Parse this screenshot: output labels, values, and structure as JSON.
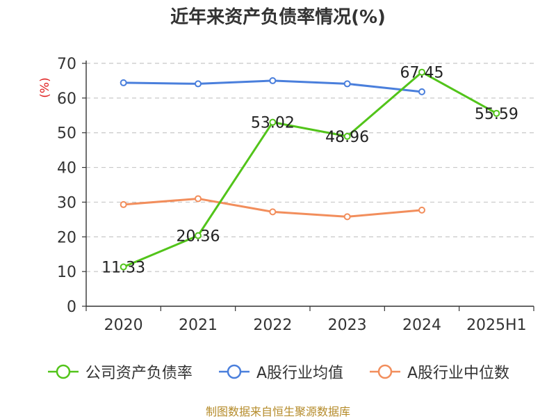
{
  "chart_data": {
    "type": "line",
    "title": "近年来资产负债率情况(%)",
    "ylabel": "(%)",
    "xlabel": "",
    "ylim": [
      0,
      70
    ],
    "yticks": [
      0,
      10,
      20,
      30,
      40,
      50,
      60,
      70
    ],
    "categories": [
      "2020",
      "2021",
      "2022",
      "2023",
      "2024",
      "2025H1"
    ],
    "grid": true,
    "legend_position": "bottom",
    "series": [
      {
        "name": "公司资产负债率",
        "color": "#52c41a",
        "values": [
          11.33,
          20.36,
          53.02,
          48.96,
          67.45,
          55.59
        ],
        "labels": [
          "11.33",
          "20.36",
          "53.02",
          "48.96",
          "67.45",
          "55.59"
        ]
      },
      {
        "name": "A股行业均值",
        "color": "#4a7fdc",
        "values": [
          64.4,
          64.1,
          65.0,
          64.1,
          61.8,
          null
        ]
      },
      {
        "name": "A股行业中位数",
        "color": "#f28e5c",
        "values": [
          29.3,
          31.0,
          27.2,
          25.8,
          27.7,
          null
        ]
      }
    ]
  },
  "source": "制图数据来自恒生聚源数据库"
}
